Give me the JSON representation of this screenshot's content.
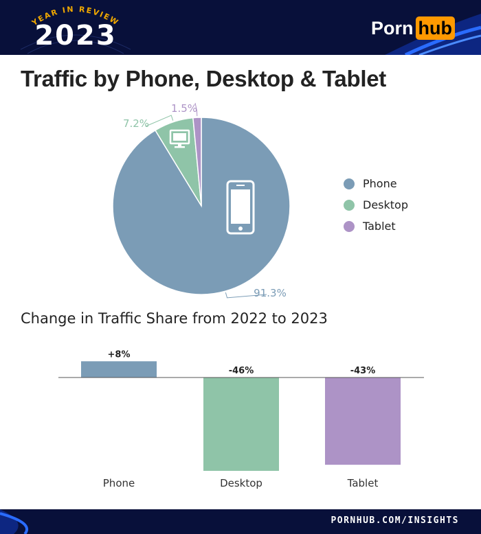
{
  "header": {
    "badge_top": "YEAR IN REVIEW",
    "badge_year": "2023",
    "logo_left": "Porn",
    "logo_right": "hub",
    "logo_color": "#ff9900",
    "background": "#08103a"
  },
  "title": "Traffic by Phone, Desktop & Tablet",
  "subtitle": "Change in Traffic Share from 2022 to 2023",
  "footer": {
    "url": "PORNHUB.COM/INSIGHTS"
  },
  "chart_data": [
    {
      "type": "pie",
      "title": "Traffic by Phone, Desktop & Tablet",
      "categories": [
        "Phone",
        "Desktop",
        "Tablet"
      ],
      "values": [
        91.3,
        7.2,
        1.5
      ],
      "labels": [
        "91.3%",
        "7.2%",
        "1.5%"
      ],
      "colors": [
        "#7b9cb6",
        "#8fc4a8",
        "#ad93c6"
      ],
      "icons": [
        "phone-icon",
        "desktop-icon",
        ""
      ],
      "legend": "right"
    },
    {
      "type": "bar",
      "title": "Change in Traffic Share from 2022 to 2023",
      "categories": [
        "Phone",
        "Desktop",
        "Tablet"
      ],
      "values": [
        8,
        -46,
        -43
      ],
      "labels": [
        "+8%",
        "-46%",
        "-43%"
      ],
      "colors": [
        "#7b9cb6",
        "#8fc4a8",
        "#ad93c6"
      ],
      "xlabel": "",
      "ylabel": "",
      "ylim": [
        -46,
        10
      ],
      "grid": false
    }
  ]
}
